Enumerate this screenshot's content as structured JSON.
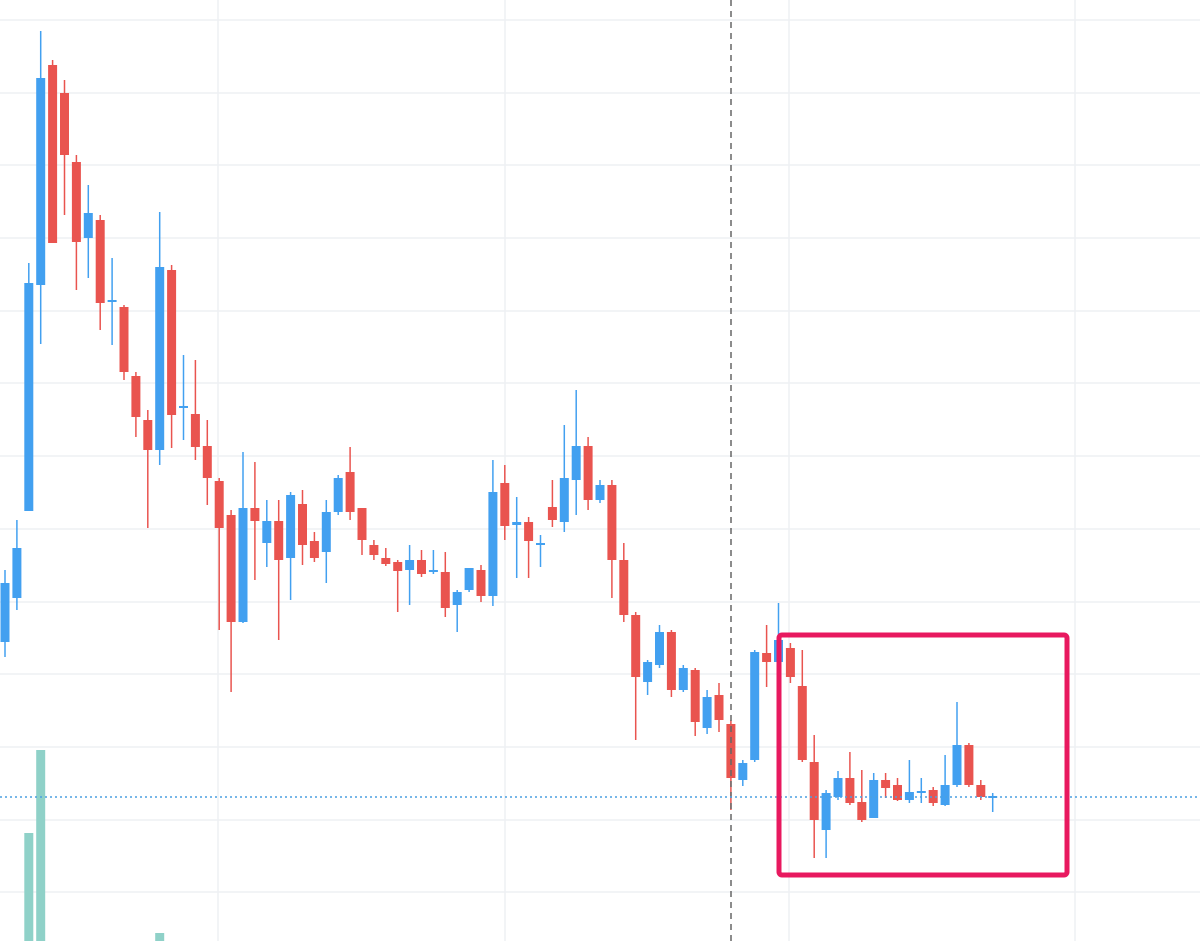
{
  "chart_data": {
    "type": "candlestick",
    "categories": [
      null,
      null,
      null,
      null,
      null,
      null,
      null,
      null,
      null,
      null,
      null,
      null,
      null,
      null,
      null,
      null,
      null,
      null,
      null,
      null,
      null,
      null,
      null,
      null,
      null,
      null,
      null,
      null,
      null,
      null,
      null,
      null,
      null,
      null,
      null,
      null,
      null,
      null,
      null,
      null,
      null,
      null,
      null,
      null,
      null,
      null,
      null,
      null,
      null,
      null,
      null,
      null,
      null,
      null,
      null,
      null,
      null,
      null,
      null,
      null,
      null,
      null,
      null,
      null,
      null,
      null,
      null,
      null,
      null,
      null,
      null,
      null,
      null,
      null,
      null,
      null,
      null,
      null,
      null,
      null,
      null,
      null,
      null,
      null
    ],
    "open": [
      299,
      343,
      430,
      656,
      876,
      848,
      779,
      703,
      721,
      639,
      634,
      565,
      521,
      491,
      671,
      533,
      527,
      495,
      460,
      426,
      319,
      433,
      398,
      420,
      383,
      437,
      400,
      389,
      429,
      469,
      433,
      396,
      383,
      379,
      371,
      381,
      369,
      369,
      336,
      351,
      371,
      345,
      458,
      416,
      419,
      396,
      434,
      419,
      461,
      495,
      441,
      456,
      381,
      326,
      259,
      276,
      309,
      251,
      271,
      213,
      246,
      217,
      161,
      181,
      288,
      279,
      293,
      255,
      179,
      111,
      144,
      163,
      139,
      123,
      161,
      156,
      141,
      148,
      151,
      136,
      156,
      196,
      156,
      143
    ],
    "high": [
      371,
      421,
      678,
      910,
      881,
      861,
      786,
      756,
      726,
      683,
      636,
      569,
      531,
      729,
      676,
      586,
      581,
      521,
      463,
      431,
      489,
      479,
      441,
      441,
      449,
      451,
      409,
      441,
      466,
      494,
      433,
      401,
      393,
      381,
      396,
      391,
      391,
      389,
      351,
      373,
      376,
      481,
      476,
      444,
      424,
      406,
      461,
      516,
      551,
      504,
      461,
      461,
      398,
      329,
      281,
      316,
      311,
      276,
      273,
      251,
      258,
      221,
      181,
      291,
      316,
      338,
      298,
      291,
      206,
      151,
      170,
      189,
      171,
      168,
      168,
      163,
      181,
      163,
      154,
      186,
      239,
      198,
      161,
      148
    ],
    "low": [
      284,
      331,
      430,
      597,
      698,
      726,
      651,
      663,
      611,
      596,
      561,
      504,
      413,
      476,
      493,
      501,
      481,
      436,
      311,
      249,
      318,
      361,
      374,
      301,
      341,
      376,
      379,
      358,
      426,
      421,
      386,
      381,
      375,
      329,
      336,
      364,
      367,
      324,
      309,
      349,
      339,
      335,
      401,
      363,
      363,
      374,
      414,
      409,
      426,
      431,
      438,
      343,
      319,
      201,
      246,
      273,
      244,
      249,
      205,
      207,
      209,
      131,
      155,
      179,
      254,
      279,
      258,
      179,
      83,
      83,
      141,
      136,
      119,
      123,
      143,
      140,
      138,
      138,
      135,
      135,
      154,
      154,
      141,
      129
    ],
    "close": [
      358,
      393,
      658,
      863,
      698,
      786,
      699,
      728,
      638,
      641,
      569,
      524,
      491,
      674,
      526,
      535,
      494,
      463,
      413,
      319,
      433,
      420,
      420,
      381,
      446,
      396,
      383,
      429,
      463,
      429,
      401,
      386,
      377,
      370,
      381,
      367,
      371,
      333,
      349,
      373,
      345,
      449,
      415,
      419,
      400,
      398,
      421,
      463,
      495,
      441,
      456,
      381,
      326,
      264,
      279,
      309,
      251,
      273,
      219,
      244,
      221,
      163,
      178,
      289,
      279,
      301,
      264,
      181,
      121,
      148,
      163,
      138,
      121,
      161,
      153,
      141,
      149,
      150,
      138,
      156,
      196,
      156,
      144,
      145
    ],
    "up_color": "#42a0f0",
    "down_color": "#e9544f",
    "ylim": [
      0,
      941
    ],
    "yticks": [
      49,
      121,
      194,
      267,
      339,
      412,
      485,
      558,
      630,
      703,
      776,
      848,
      921
    ],
    "grid": true,
    "volume": {
      "color": "#8fd1c8",
      "ylim": [
        0,
        941
      ],
      "values": [
        null,
        null,
        108,
        191,
        null,
        null,
        null,
        null,
        null,
        null,
        null,
        null,
        null,
        8,
        null,
        null,
        null,
        null,
        null,
        null,
        null,
        null,
        null,
        null,
        null,
        null,
        null,
        null,
        null,
        null,
        null,
        null,
        null,
        null,
        null,
        null,
        null,
        null,
        null,
        null,
        null,
        null,
        null,
        null,
        null,
        null,
        null,
        null,
        null,
        null,
        null,
        null,
        null,
        null,
        null,
        null,
        null,
        null,
        null,
        null,
        null,
        null,
        null,
        null,
        null,
        null,
        null,
        null,
        null,
        null,
        null,
        null,
        null,
        null,
        null,
        null,
        null,
        null,
        null,
        null,
        null,
        null,
        null,
        null
      ]
    }
  }
}
